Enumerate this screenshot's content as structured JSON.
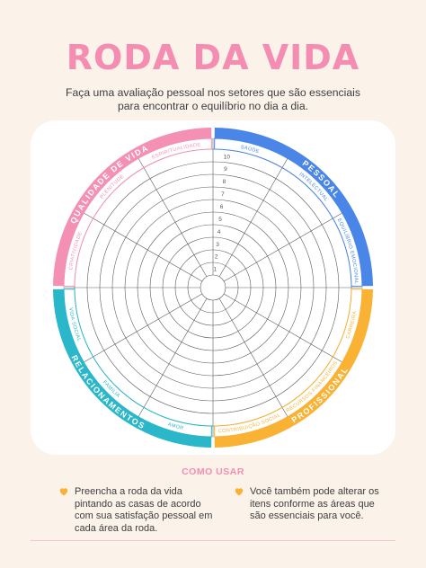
{
  "header": {
    "title": "RODA DA VIDA",
    "subtitle": "Faça uma avaliação pessoal nos setores que são essenciais para encontrar o equilíbrio no dia a dia."
  },
  "wheel": {
    "scale": [
      "1",
      "2",
      "3",
      "4",
      "5",
      "6",
      "7",
      "8",
      "9",
      "10"
    ],
    "groups": [
      {
        "label": "PESSOAL",
        "color": "#4a86e8"
      },
      {
        "label": "PROFISSIONAL",
        "color": "#f9b233"
      },
      {
        "label": "RELACIONAMENTOS",
        "color": "#2ab7c9"
      },
      {
        "label": "QUALIDADE DE VIDA",
        "color": "#f590b5"
      }
    ],
    "areas": [
      "SAÚDE",
      "INTELECTUAL",
      "EQUILÍBRIO EMOCIONAL",
      "CARREIRA",
      "RECURSOS FINANCEIROS",
      "CONTRIBUIÇÃO SOCIAL",
      "AMOR",
      "FAMÍLIA",
      "VIDA SOCIAL",
      "CRIATIVIDADE",
      "PLENITUDE",
      "ESPIRITUALIDADE"
    ]
  },
  "how_to": {
    "title": "COMO USAR",
    "tips": [
      "Preencha a roda da vida pintando as casas de acordo com sua satisfação pessoal em cada área da roda.",
      "Você também pode alterar os itens conforme as áreas que são essenciais para você."
    ],
    "heart_color": "#f9b233"
  }
}
